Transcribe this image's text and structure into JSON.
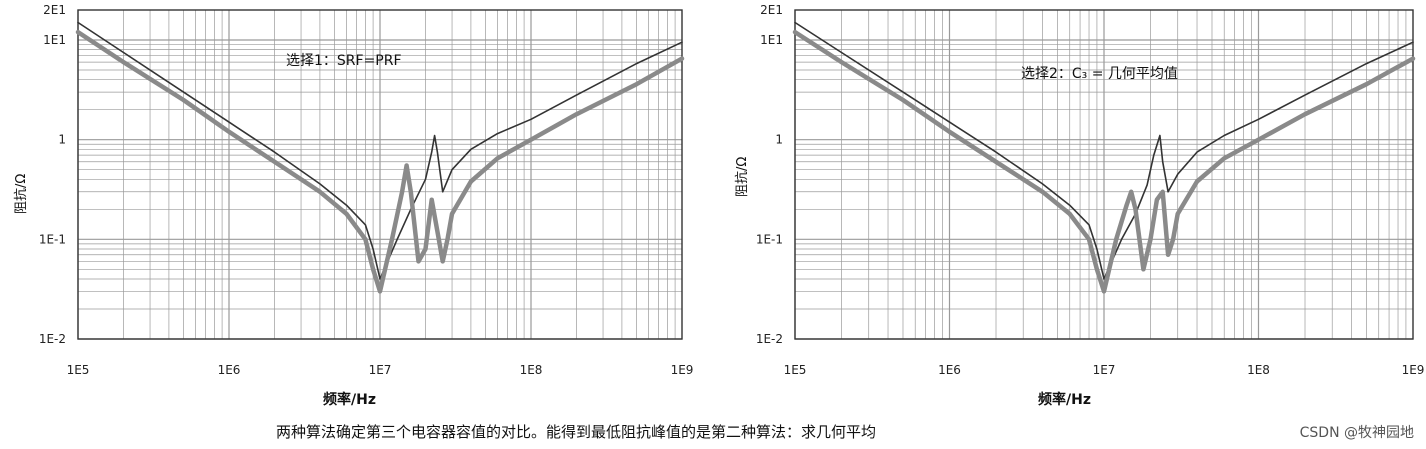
{
  "caption": "两种算法确定第三个电容器容值的对比。能得到最低阻抗峰值的是第二种算法：求几何平均",
  "watermark": "CSDN @牧神园地",
  "colors": {
    "thin_line": "#333333",
    "thick_line": "#8a8a8a",
    "grid": "#9a9a9a"
  },
  "chart_data": [
    {
      "type": "line",
      "title": "选择1：SRF=PRF",
      "xlabel": "频率/Hz",
      "ylabel": "阻抗/Ω",
      "xscale": "log",
      "yscale": "log",
      "xlim": [
        100000,
        1000000000
      ],
      "ylim": [
        0.01,
        20
      ],
      "xticks": [
        "1E5",
        "1E6",
        "1E7",
        "1E8",
        "1E9"
      ],
      "yticks": [
        "2E1",
        "1E1",
        "1",
        "1E-1",
        "1E-2"
      ],
      "grid": true,
      "series": [
        {
          "style": "thin-dark",
          "x": [
            100000,
            200000,
            500000,
            1000000,
            2000000,
            4000000,
            6000000,
            8000000,
            9000000,
            10000000,
            13000000,
            16000000,
            20000000,
            22000000,
            23000000,
            24000000,
            26000000,
            30000000,
            40000000,
            60000000,
            100000000,
            200000000,
            500000000,
            1000000000
          ],
          "y": [
            15,
            7.5,
            3.0,
            1.5,
            0.75,
            0.36,
            0.22,
            0.14,
            0.08,
            0.04,
            0.1,
            0.2,
            0.4,
            0.75,
            1.1,
            0.75,
            0.3,
            0.5,
            0.8,
            1.15,
            1.6,
            2.8,
            5.8,
            9.5
          ]
        },
        {
          "style": "thick-gray",
          "x": [
            100000,
            200000,
            500000,
            1000000,
            2000000,
            4000000,
            6000000,
            8000000,
            9000000,
            10000000,
            12000000,
            14000000,
            15000000,
            16000000,
            18000000,
            20000000,
            22000000,
            24000000,
            26000000,
            28000000,
            30000000,
            40000000,
            60000000,
            100000000,
            200000000,
            500000000,
            1000000000
          ],
          "y": [
            12,
            6.0,
            2.5,
            1.2,
            0.6,
            0.3,
            0.18,
            0.1,
            0.05,
            0.03,
            0.1,
            0.3,
            0.55,
            0.3,
            0.06,
            0.08,
            0.25,
            0.12,
            0.06,
            0.1,
            0.18,
            0.38,
            0.65,
            1.0,
            1.8,
            3.6,
            6.5
          ]
        }
      ]
    },
    {
      "type": "line",
      "title": "选择2：C₃ = 几何平均值",
      "xlabel": "频率/Hz",
      "ylabel": "阻抗/Ω",
      "xscale": "log",
      "yscale": "log",
      "xlim": [
        100000,
        1000000000
      ],
      "ylim": [
        0.01,
        20
      ],
      "xticks": [
        "1E5",
        "1E6",
        "1E7",
        "1E8",
        "1E9"
      ],
      "yticks": [
        "2E1",
        "1E1",
        "1",
        "1E-1",
        "1E-2"
      ],
      "grid": true,
      "series": [
        {
          "style": "thin-dark",
          "x": [
            100000,
            200000,
            500000,
            1000000,
            2000000,
            4000000,
            6000000,
            8000000,
            9000000,
            10000000,
            13000000,
            16000000,
            19000000,
            21000000,
            23000000,
            24000000,
            26000000,
            30000000,
            40000000,
            60000000,
            100000000,
            200000000,
            500000000,
            1000000000
          ],
          "y": [
            15,
            7.5,
            3.0,
            1.5,
            0.75,
            0.36,
            0.22,
            0.14,
            0.08,
            0.04,
            0.1,
            0.18,
            0.35,
            0.7,
            1.1,
            0.6,
            0.3,
            0.45,
            0.75,
            1.1,
            1.6,
            2.8,
            5.8,
            9.5
          ]
        },
        {
          "style": "thick-gray",
          "x": [
            100000,
            200000,
            500000,
            1000000,
            2000000,
            4000000,
            6000000,
            8000000,
            9000000,
            10000000,
            12000000,
            14000000,
            15000000,
            16000000,
            18000000,
            20000000,
            22000000,
            24000000,
            26000000,
            28000000,
            30000000,
            40000000,
            60000000,
            100000000,
            200000000,
            500000000,
            1000000000
          ],
          "y": [
            12,
            6.0,
            2.5,
            1.2,
            0.6,
            0.3,
            0.18,
            0.1,
            0.05,
            0.03,
            0.1,
            0.22,
            0.3,
            0.2,
            0.05,
            0.1,
            0.25,
            0.3,
            0.07,
            0.1,
            0.18,
            0.38,
            0.65,
            1.0,
            1.8,
            3.6,
            6.5
          ]
        }
      ]
    }
  ]
}
